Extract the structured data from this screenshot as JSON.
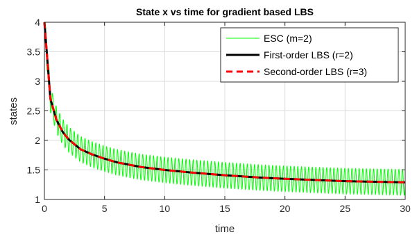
{
  "chart_data": {
    "type": "line",
    "title": "State x vs time for gradient based LBS",
    "xlabel": "time",
    "ylabel": "states",
    "xlim": [
      0,
      30
    ],
    "ylim": [
      1,
      4
    ],
    "xticks": [
      "0",
      "5",
      "10",
      "15",
      "20",
      "25",
      "30"
    ],
    "yticks": [
      "1",
      "1.5",
      "2",
      "2.5",
      "3",
      "3.5",
      "4"
    ],
    "grid": true,
    "legend_position": "top-right",
    "series": [
      {
        "name": "ESC (m=2)",
        "color": "#00ff00",
        "style": "solid-thin",
        "x": [
          0,
          0.5,
          1,
          1.5,
          2,
          3,
          4,
          5,
          6,
          8,
          10,
          12,
          15,
          18,
          20,
          25,
          30
        ],
        "y": [
          4.0,
          2.7,
          2.35,
          2.15,
          2.02,
          1.85,
          1.76,
          1.69,
          1.63,
          1.55,
          1.5,
          1.46,
          1.41,
          1.37,
          1.35,
          1.31,
          1.29
        ],
        "oscillation_amplitude": 0.22,
        "oscillation_period": 0.3
      },
      {
        "name": "First-order LBS (r=2)",
        "color": "#000000",
        "style": "solid-thick",
        "x": [
          0,
          0.5,
          1,
          1.5,
          2,
          3,
          4,
          5,
          6,
          8,
          10,
          12,
          15,
          18,
          20,
          25,
          30
        ],
        "y": [
          4.0,
          2.7,
          2.35,
          2.15,
          2.02,
          1.85,
          1.76,
          1.69,
          1.63,
          1.55,
          1.5,
          1.46,
          1.41,
          1.37,
          1.35,
          1.31,
          1.29
        ]
      },
      {
        "name": "Second-order LBS (r=3)",
        "color": "#ff0000",
        "style": "dashed-thick",
        "x": [
          0,
          0.5,
          1,
          1.5,
          2,
          3,
          4,
          5,
          6,
          8,
          10,
          12,
          15,
          18,
          20,
          25,
          30
        ],
        "y": [
          4.0,
          2.7,
          2.35,
          2.15,
          2.02,
          1.85,
          1.76,
          1.69,
          1.63,
          1.55,
          1.5,
          1.46,
          1.41,
          1.37,
          1.35,
          1.31,
          1.29
        ]
      }
    ]
  }
}
